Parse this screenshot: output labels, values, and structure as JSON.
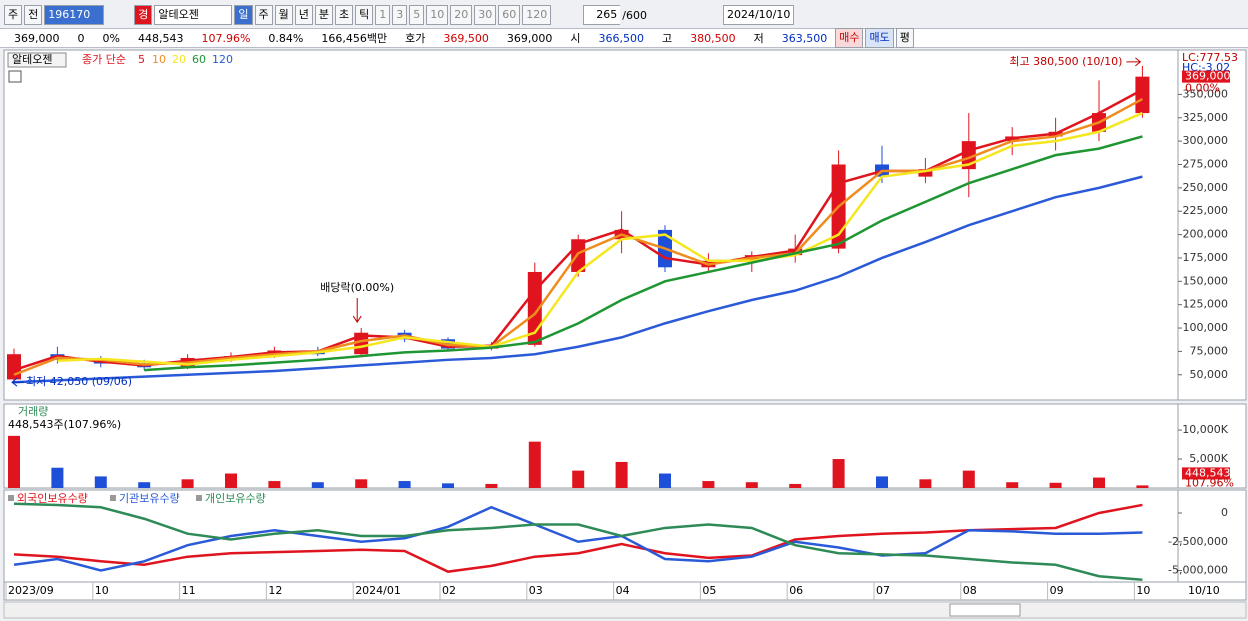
{
  "toolbar": {
    "market": "주",
    "prev": "전",
    "code": "196170",
    "warning": "경",
    "name": "알테오젠",
    "periods": [
      "일",
      "주",
      "월",
      "년",
      "분",
      "초",
      "틱"
    ],
    "intervals": [
      "1",
      "3",
      "5",
      "10",
      "20",
      "30",
      "60",
      "120"
    ],
    "count": "265",
    "count_max": "/600",
    "date": "2024/10/10"
  },
  "quote": [
    {
      "text": "369,000",
      "color": "#000"
    },
    {
      "text": "0",
      "color": "#000"
    },
    {
      "text": "0%",
      "color": "#000"
    },
    {
      "text": "448,543",
      "color": "#000"
    },
    {
      "text": "107.96%",
      "color": "#d00000"
    },
    {
      "text": "0.84%",
      "color": "#000"
    },
    {
      "text": "166,456백만",
      "color": "#000"
    },
    {
      "text": "호가",
      "color": "#000"
    },
    {
      "text": "369,500",
      "color": "#d00000"
    },
    {
      "text": "369,000",
      "color": "#000"
    },
    {
      "text": "시",
      "color": "#000"
    },
    {
      "text": "366,500",
      "color": "#0030c0"
    },
    {
      "text": "고",
      "color": "#000"
    },
    {
      "text": "380,500",
      "color": "#d00000"
    },
    {
      "text": "저",
      "color": "#000"
    },
    {
      "text": "363,500",
      "color": "#0030c0"
    }
  ],
  "buttons": [
    "매수",
    "매도",
    "평"
  ],
  "chart_data": [
    {
      "type": "candlestick",
      "title": "알테오젠",
      "ma_label": "종가 단순",
      "up_color": "#e0141e",
      "down_color": "#1d4fd8",
      "open": [
        45000,
        72000,
        66000,
        62000,
        58000,
        68000,
        70000,
        76000,
        72000,
        95000,
        88000,
        78000,
        82000,
        160000,
        195000,
        205000,
        165000,
        172000,
        178000,
        185000,
        275000,
        262000,
        270000,
        300000,
        305000,
        310000,
        330000
      ],
      "high": [
        78000,
        80000,
        70000,
        66000,
        72000,
        74000,
        80000,
        80000,
        100000,
        98000,
        90000,
        85000,
        170000,
        200000,
        225000,
        210000,
        180000,
        182000,
        200000,
        290000,
        295000,
        282000,
        330000,
        315000,
        325000,
        365000,
        380500
      ],
      "low": [
        42050,
        62000,
        58000,
        55000,
        56000,
        64000,
        68000,
        70000,
        70000,
        85000,
        75000,
        76000,
        80000,
        155000,
        180000,
        160000,
        160000,
        160000,
        170000,
        180000,
        255000,
        255000,
        240000,
        285000,
        290000,
        300000,
        325000
      ],
      "close": [
        72000,
        66000,
        62000,
        58000,
        68000,
        70000,
        76000,
        72000,
        95000,
        88000,
        78000,
        82000,
        160000,
        195000,
        205000,
        165000,
        172000,
        178000,
        185000,
        275000,
        262000,
        270000,
        300000,
        305000,
        310000,
        330000,
        369000
      ],
      "series": [
        {
          "name": "5",
          "color": "#e0141e",
          "values": [
            55000,
            70000,
            64000,
            60000,
            65000,
            69000,
            74000,
            75000,
            92000,
            90000,
            80000,
            81000,
            140000,
            190000,
            205000,
            175000,
            168000,
            176000,
            183000,
            255000,
            268000,
            268000,
            290000,
            303000,
            308000,
            330000,
            355000
          ]
        },
        {
          "name": "10",
          "color": "#f08c1e",
          "values": [
            50000,
            68000,
            66000,
            61000,
            63000,
            68000,
            72000,
            75000,
            86000,
            92000,
            82000,
            80000,
            115000,
            180000,
            200000,
            185000,
            168000,
            175000,
            180000,
            230000,
            268000,
            268000,
            282000,
            300000,
            305000,
            320000,
            345000
          ]
        },
        {
          "name": "20",
          "color": "#f5e61e",
          "values": [
            null,
            65000,
            67000,
            64000,
            61000,
            66000,
            70000,
            74000,
            80000,
            90000,
            85000,
            80000,
            95000,
            160000,
            195000,
            200000,
            172000,
            172000,
            178000,
            200000,
            262000,
            268000,
            275000,
            295000,
            300000,
            310000,
            330000
          ]
        },
        {
          "name": "60",
          "color": "#1e9632",
          "values": [
            null,
            null,
            null,
            55000,
            58000,
            60000,
            63000,
            66000,
            70000,
            74000,
            76000,
            79000,
            85000,
            105000,
            130000,
            150000,
            160000,
            170000,
            180000,
            190000,
            215000,
            235000,
            255000,
            270000,
            285000,
            292000,
            305000
          ]
        },
        {
          "name": "120",
          "color": "#2a5ad8",
          "values": [
            42000,
            44000,
            46000,
            48000,
            50000,
            52000,
            54000,
            57000,
            60000,
            63000,
            66000,
            68000,
            72000,
            80000,
            90000,
            105000,
            118000,
            130000,
            140000,
            155000,
            175000,
            192000,
            210000,
            225000,
            240000,
            250000,
            262000
          ]
        }
      ],
      "ylim": [
        23000,
        397500
      ],
      "yticks": [
        {
          "value": 50000,
          "label": "50,000"
        },
        {
          "value": 75000,
          "label": "75,000"
        },
        {
          "value": 100000,
          "label": "100,000"
        },
        {
          "value": 125000,
          "label": "125,000"
        },
        {
          "value": 150000,
          "label": "150,000"
        },
        {
          "value": 175000,
          "label": "175,000"
        },
        {
          "value": 200000,
          "label": "200,000"
        },
        {
          "value": 225000,
          "label": "225,000"
        },
        {
          "value": 250000,
          "label": "250,000"
        },
        {
          "value": 275000,
          "label": "275,000"
        },
        {
          "value": 300000,
          "label": "300,000"
        },
        {
          "value": 325000,
          "label": "325,000"
        },
        {
          "value": 350000,
          "label": "350,000"
        }
      ],
      "high_label": "최고 380,500 (10/10)",
      "low_label": "최저 42,050 (09/06)",
      "event_label": "배당락(0.00%)",
      "lc_label": "LC:777.53",
      "hc_label": "HC:-3.02",
      "price_label": "369,000",
      "change_label": "0.00%"
    },
    {
      "type": "bar",
      "title": "거래량",
      "subtitle": "448,543주(107.96%)",
      "values": [
        9000000,
        3500000,
        2000000,
        1000000,
        1500000,
        2500000,
        1200000,
        1000000,
        1500000,
        1200000,
        800000,
        700000,
        8000000,
        3000000,
        4500000,
        2500000,
        1200000,
        1000000,
        700000,
        5000000,
        2000000,
        1500000,
        3000000,
        1000000,
        900000,
        1800000,
        448543
      ],
      "ylim": [
        0,
        14500000
      ],
      "yticks": [
        {
          "value": 5000000,
          "label": "5,000K"
        },
        {
          "value": 10000000,
          "label": "10,000K"
        }
      ],
      "last_label": "448,543",
      "last_pct_label": "107.96%"
    },
    {
      "type": "line",
      "categories": [
        "2023/09",
        null,
        "10",
        null,
        "11",
        null,
        "12",
        null,
        "2024/01",
        null,
        "02",
        null,
        "03",
        null,
        "04",
        null,
        "05",
        null,
        "06",
        null,
        "07",
        null,
        "08",
        null,
        "09",
        null,
        "10"
      ],
      "series": [
        {
          "name": "외국인보유수량",
          "color": "#e0141e",
          "values": [
            -3600000,
            -3800000,
            -4200000,
            -4500000,
            -3800000,
            -3500000,
            -3400000,
            -3300000,
            -3200000,
            -3300000,
            -5100000,
            -4600000,
            -3800000,
            -3500000,
            -2700000,
            -3500000,
            -3900000,
            -3700000,
            -2300000,
            -2000000,
            -1800000,
            -1700000,
            -1500000,
            -1400000,
            -1300000,
            0,
            700000
          ]
        },
        {
          "name": "기관보유수량",
          "color": "#2a5ad8",
          "values": [
            -4500000,
            -4000000,
            -5000000,
            -4200000,
            -2800000,
            -2000000,
            -1500000,
            -2000000,
            -2500000,
            -2200000,
            -1200000,
            500000,
            -1000000,
            -2500000,
            -2000000,
            -4000000,
            -4200000,
            -3800000,
            -2500000,
            -3000000,
            -3700000,
            -3500000,
            -1500000,
            -1600000,
            -1800000,
            -1800000,
            -1700000
          ]
        },
        {
          "name": "개인보유수량",
          "color": "#2e8b57",
          "values": [
            800000,
            700000,
            500000,
            -500000,
            -1800000,
            -2300000,
            -1800000,
            -1500000,
            -2000000,
            -2000000,
            -1500000,
            -1300000,
            -1000000,
            -1000000,
            -2000000,
            -1300000,
            -1000000,
            -1300000,
            -2800000,
            -3500000,
            -3600000,
            -3700000,
            -4000000,
            -4300000,
            -4500000,
            -5500000,
            -5800000
          ]
        }
      ],
      "ylim": [
        -6000000,
        2000000
      ],
      "yticks": [
        0,
        {
          "value": -2500000,
          "label": "-2,500,000"
        },
        {
          "value": -5000000,
          "label": "-5,000,000"
        }
      ],
      "date_label": "10/10"
    }
  ]
}
